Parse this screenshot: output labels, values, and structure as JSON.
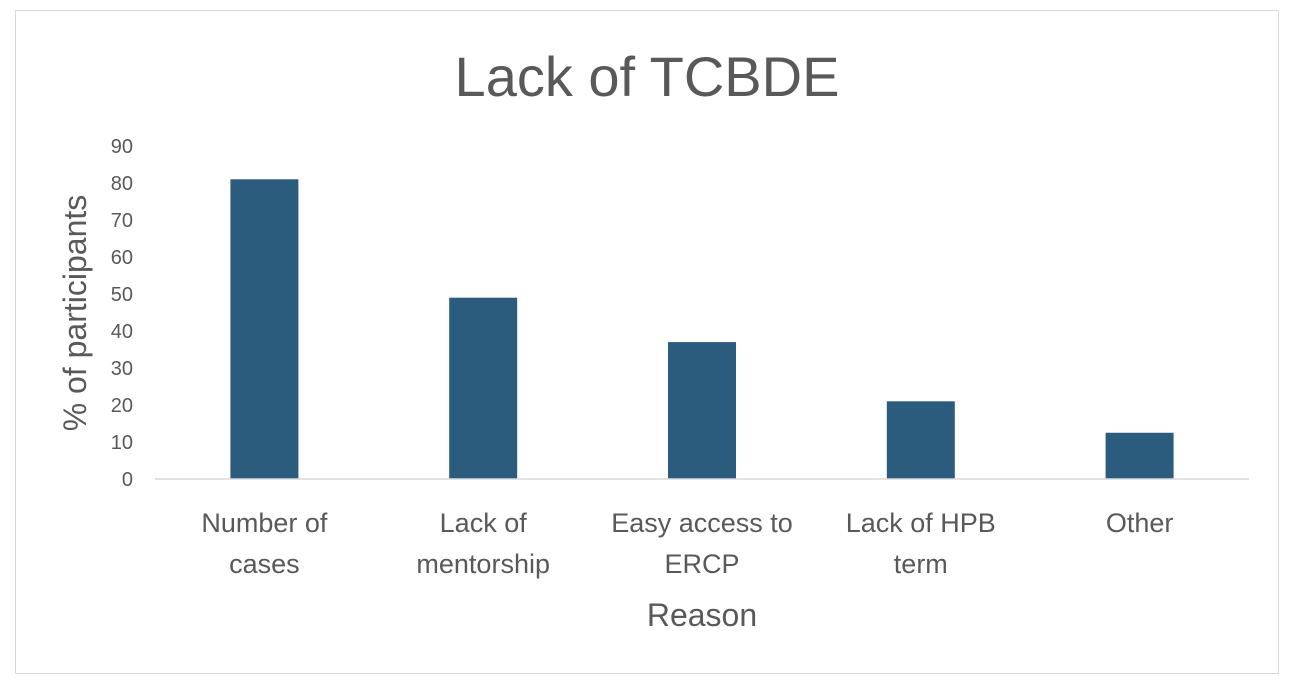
{
  "chart_data": {
    "type": "bar",
    "title": "Lack of TCBDE",
    "xlabel": "Reason",
    "ylabel": "% of participants",
    "categories": [
      [
        "Number of",
        "cases"
      ],
      [
        "Lack of",
        "mentorship"
      ],
      [
        "Easy access to",
        "ERCP"
      ],
      [
        "Lack of HPB",
        "term"
      ],
      [
        "Other"
      ]
    ],
    "values": [
      81,
      49,
      37,
      21,
      12.5
    ],
    "ylim": [
      0,
      90
    ],
    "yticks": [
      0,
      10,
      20,
      30,
      40,
      50,
      60,
      70,
      80,
      90
    ],
    "grid": false,
    "legend": "none",
    "bar_color": "#2b5c7e",
    "text_color": "#595959",
    "axis_color": "#d9d9d9"
  }
}
